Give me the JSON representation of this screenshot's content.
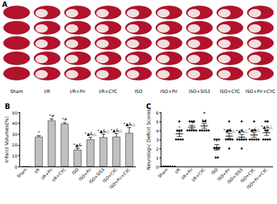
{
  "photo_panel": {
    "letter": "A",
    "labels": [
      "Sham",
      "I/R",
      "I/R+Pir",
      "I/R+CYC",
      "ISO",
      "ISO+Pir",
      "ISO+SIS3",
      "ISO+CYC",
      "ISO+Pir+CYC"
    ]
  },
  "chart_data": [
    {
      "type": "bar",
      "title": "B",
      "categories": [
        "Sham",
        "I/R",
        "I/R+Pir",
        "I/R+CYC",
        "ISO",
        "ISO+Pir",
        "ISO+SIS3",
        "ISO+CYC",
        "ISO+Pir+CYC"
      ],
      "values": [
        0,
        27.5,
        42.5,
        39.5,
        15.5,
        25,
        27,
        27.5,
        31
      ],
      "errors": [
        0,
        1,
        1.5,
        1,
        1.5,
        2,
        3,
        3,
        5
      ],
      "annotations": [
        null,
        "*",
        "*#",
        "*#",
        "*▲&",
        "*▲&△",
        "*▲&△",
        "*▲&△",
        "*▲&△"
      ],
      "color": "#c0c0c0",
      "y_label": "Infarct Volumes(%)",
      "ylim": [
        0,
        50
      ],
      "yticks": [
        0,
        10,
        20,
        30,
        40,
        50
      ],
      "grid": false
    },
    {
      "type": "scatter",
      "title": "C",
      "categories": [
        "Sham",
        "I/R",
        "I/R+Pir",
        "I/R+CYC",
        "ISO",
        "ISO+Pir",
        "ISO+SIS3",
        "ISO+CYC",
        "ISO+Pir+CYC"
      ],
      "points": [
        [
          0,
          0,
          0,
          0,
          0,
          0,
          0,
          0
        ],
        [
          5,
          4,
          4,
          4,
          3,
          3,
          3,
          3
        ],
        [
          5,
          5,
          4,
          4,
          4,
          4,
          5,
          4
        ],
        [
          6,
          5,
          5,
          4,
          4,
          4,
          4,
          4
        ],
        [
          3,
          3,
          3,
          2,
          2,
          2,
          1,
          1
        ],
        [
          5,
          4,
          4,
          3,
          3,
          3,
          3,
          2
        ],
        [
          5,
          4,
          3,
          3,
          3,
          3,
          3,
          2
        ],
        [
          5,
          4,
          4,
          3,
          3,
          3,
          3,
          3
        ],
        [
          5,
          5,
          4,
          4,
          3,
          3,
          3,
          3
        ]
      ],
      "values": [
        0,
        3.625,
        4.375,
        4.5,
        2.125,
        3.375,
        3.25,
        3.5,
        3.75
      ],
      "errors": [
        0,
        0.3,
        0.2,
        0.25,
        0.3,
        0.3,
        0.3,
        0.25,
        0.3
      ],
      "annotations": [
        null,
        "*",
        "*#",
        "*#",
        "*",
        "*▲&△",
        "*▲&△",
        "*▲&△",
        "*▲&△"
      ],
      "color": "#000000",
      "y_label": "Neurologic Deficit Scores",
      "ylim": [
        0,
        6
      ],
      "yticks": [
        0,
        1,
        2,
        3,
        4,
        5,
        6
      ],
      "grid": false
    }
  ]
}
